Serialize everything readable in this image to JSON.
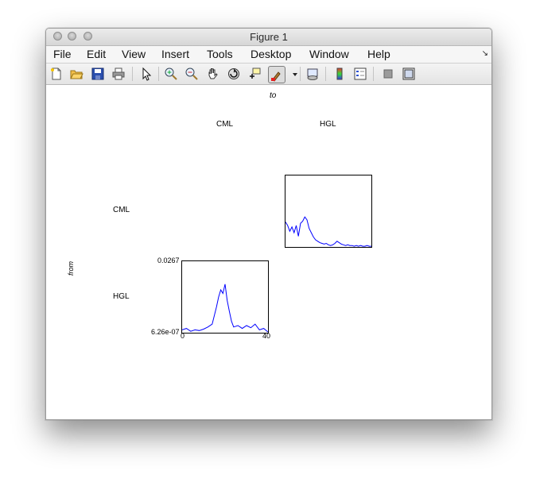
{
  "window": {
    "title": "Figure 1"
  },
  "menubar": {
    "items": [
      "File",
      "Edit",
      "View",
      "Insert",
      "Tools",
      "Desktop",
      "Window",
      "Help"
    ]
  },
  "toolbar": {
    "icons": [
      "new-figure-icon",
      "open-file-icon",
      "save-icon",
      "print-icon",
      "pointer-icon",
      "zoom-in-icon",
      "zoom-out-icon",
      "pan-hand-icon",
      "rotate-3d-icon",
      "data-cursor-icon",
      "brush-icon",
      "link-plot-icon",
      "colorbar-icon",
      "legend-icon",
      "hide-plot-tools-icon",
      "show-plot-tools-icon"
    ]
  },
  "figure": {
    "to_label": "to",
    "from_label": "from",
    "col_labels": [
      "CML",
      "HGL"
    ],
    "row_labels": [
      "CML",
      "HGL"
    ]
  },
  "axes_hgl_hgl": {
    "ymax_label": "0.0267",
    "ymin_label": "6.26e-07",
    "xmin_label": "0",
    "xmax_label": "40"
  },
  "colors": {
    "line": "#0000ff"
  },
  "chart_data": [
    {
      "type": "line",
      "panel": "from CML to HGL",
      "x": [
        0,
        1,
        2,
        3,
        4,
        5,
        6,
        7,
        8,
        9,
        10,
        11,
        12,
        13,
        14,
        15,
        16,
        17,
        18,
        19,
        20,
        21,
        22,
        23,
        24,
        25,
        26,
        27,
        28,
        29,
        30,
        31,
        32,
        33,
        34,
        35,
        36,
        37,
        38,
        39,
        40
      ],
      "y": [
        0.35,
        0.3,
        0.22,
        0.28,
        0.2,
        0.3,
        0.15,
        0.33,
        0.36,
        0.42,
        0.38,
        0.26,
        0.2,
        0.14,
        0.1,
        0.08,
        0.06,
        0.05,
        0.04,
        0.05,
        0.03,
        0.02,
        0.03,
        0.05,
        0.08,
        0.06,
        0.04,
        0.03,
        0.02,
        0.03,
        0.02,
        0.02,
        0.01,
        0.02,
        0.01,
        0.02,
        0.01,
        0.01,
        0.02,
        0.01,
        0.01
      ],
      "ylim": [
        0,
        1
      ]
    },
    {
      "type": "line",
      "panel": "from HGL to HGL",
      "x": [
        0,
        2,
        4,
        6,
        8,
        10,
        12,
        14,
        16,
        17,
        18,
        19,
        20,
        21,
        22,
        23,
        24,
        26,
        28,
        30,
        32,
        34,
        36,
        38,
        40
      ],
      "y": [
        0.04,
        0.06,
        0.02,
        0.04,
        0.03,
        0.05,
        0.08,
        0.12,
        0.36,
        0.5,
        0.6,
        0.55,
        0.68,
        0.45,
        0.3,
        0.16,
        0.08,
        0.1,
        0.06,
        0.1,
        0.07,
        0.12,
        0.04,
        0.06,
        0.01
      ],
      "ylim": [
        6.26e-07,
        0.0267
      ],
      "xlim": [
        0,
        40
      ]
    }
  ]
}
